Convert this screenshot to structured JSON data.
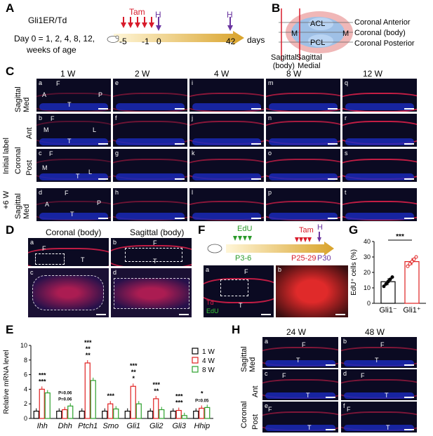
{
  "panels": {
    "A": {
      "letter": "A",
      "line1": "Gli1ER/Td",
      "line2": "Day 0 = 1, 2, 4, 8, 12,",
      "line3": "weeks of age",
      "tam": "Tam",
      "h1": "H",
      "h2": "H",
      "ticks": [
        "-5",
        "-1",
        "0",
        "42"
      ],
      "days": "days"
    },
    "B": {
      "letter": "B",
      "acl": "ACL",
      "pcl": "PCL",
      "m_left": "M",
      "m_right": "M",
      "coronal_anterior": "Coronal Anterior",
      "coronal_body": "Coronal (body)",
      "coronal_posterior": "Coronal Posterior",
      "sagittal_body": "Sagittal\n(body)",
      "sagittal_medial": "Sagittal\nMedial"
    },
    "C": {
      "letter": "C",
      "columns": [
        "1 W",
        "2 W",
        "4 W",
        "8 W",
        "12 W"
      ],
      "row_groups": {
        "initial_label": "Initial label",
        "plus6w": "+6 W"
      },
      "row_labels": {
        "sagittal_med": "Sagittal\nMed",
        "coronal": "Coronal",
        "ant": "Ant",
        "post": "Post",
        "sagittal_med2": "Sagittal\nMed"
      },
      "tile_letters": [
        [
          "a",
          "e",
          "i",
          "m",
          "q"
        ],
        [
          "b",
          "f",
          "j",
          "n",
          "r"
        ],
        [
          "c",
          "g",
          "k",
          "o",
          "s"
        ],
        [
          "d",
          "h",
          "l",
          "p",
          "t"
        ]
      ],
      "tile_annotations": {
        "a": [
          "F",
          "A",
          "P",
          "T"
        ],
        "b": [
          "F",
          "M",
          "L",
          "T"
        ],
        "c": [
          "F",
          "M",
          "L",
          "T"
        ],
        "d": [
          "F",
          "A",
          "P",
          "T"
        ]
      }
    },
    "D": {
      "letter": "D",
      "col1": "Coronal (body)",
      "col2": "Sagittal (body)",
      "tiles": [
        "a",
        "b",
        "c",
        "d"
      ],
      "anno_a": [
        "F",
        "T"
      ],
      "anno_b": [
        "F",
        "T"
      ]
    },
    "E": {
      "letter": "E",
      "ylabel": "Relative mRNA level",
      "legend": [
        "1 W",
        "4 W",
        "8 W"
      ],
      "sig": {
        "Ihh": [
          "***",
          "***"
        ],
        "Dhh": [
          "P=0.06",
          "P=0.06"
        ],
        "Ptch1": [
          "**",
          "**",
          "***"
        ],
        "Smo": [
          "***"
        ],
        "Gli1": [
          "*",
          "**",
          "***"
        ],
        "Gli2": [
          "**",
          "***"
        ],
        "Gli3": [
          "***",
          "***"
        ],
        "Hhip": [
          "P=0.05",
          "*"
        ]
      }
    },
    "F": {
      "letter": "F",
      "edu": "EdU",
      "tam": "Tam",
      "h": "H",
      "p1": "P3-6",
      "p2": "P25-29",
      "p3": "P30",
      "tile_a": "a",
      "tile_b": "b",
      "anno": [
        "F",
        "T"
      ],
      "legend_td": "Td",
      "legend_edu": "EdU"
    },
    "G": {
      "letter": "G",
      "ylabel": "EdU⁺ cells (%)",
      "sig": "***",
      "xlabels": [
        "Gli1⁻",
        "Gli1⁺"
      ]
    },
    "H": {
      "letter": "H",
      "columns": [
        "24 W",
        "48 W"
      ],
      "row_labels": {
        "sagittal_med": "Sagittal\nMed",
        "coronal": "Coronal",
        "ant": "Ant",
        "post": "Post"
      },
      "tile_letters": [
        [
          "a",
          "b"
        ],
        [
          "c",
          "d"
        ],
        [
          "e",
          "f"
        ]
      ]
    }
  },
  "chart_data": [
    {
      "type": "bar",
      "title": "",
      "xlabel": "",
      "ylabel": "Relative mRNA level",
      "categories": [
        "Ihh",
        "Dhh",
        "Ptch1",
        "Smo",
        "Gli1",
        "Gli2",
        "Gli3",
        "Hhip"
      ],
      "ylim": [
        0,
        10
      ],
      "yticks": [
        0,
        2,
        4,
        6,
        8,
        10
      ],
      "series": [
        {
          "name": "1 W",
          "color": "#000000",
          "values": [
            1.0,
            1.0,
            1.0,
            1.0,
            1.0,
            1.0,
            1.0,
            1.0
          ]
        },
        {
          "name": "4 W",
          "color": "#e02020",
          "values": [
            4.0,
            1.2,
            7.6,
            2.0,
            4.4,
            2.7,
            1.1,
            1.4
          ]
        },
        {
          "name": "8 W",
          "color": "#2ca02c",
          "values": [
            3.5,
            1.7,
            5.2,
            1.3,
            2.0,
            1.2,
            0.4,
            1.5
          ]
        }
      ]
    },
    {
      "type": "bar",
      "title": "",
      "xlabel": "",
      "ylabel": "EdU⁺ cells (%)",
      "categories": [
        "Gli1⁻",
        "Gli1⁺"
      ],
      "ylim": [
        0,
        40
      ],
      "yticks": [
        0,
        10,
        20,
        30,
        40
      ],
      "series": [
        {
          "name": "",
          "values": [
            14,
            27
          ]
        }
      ]
    }
  ]
}
